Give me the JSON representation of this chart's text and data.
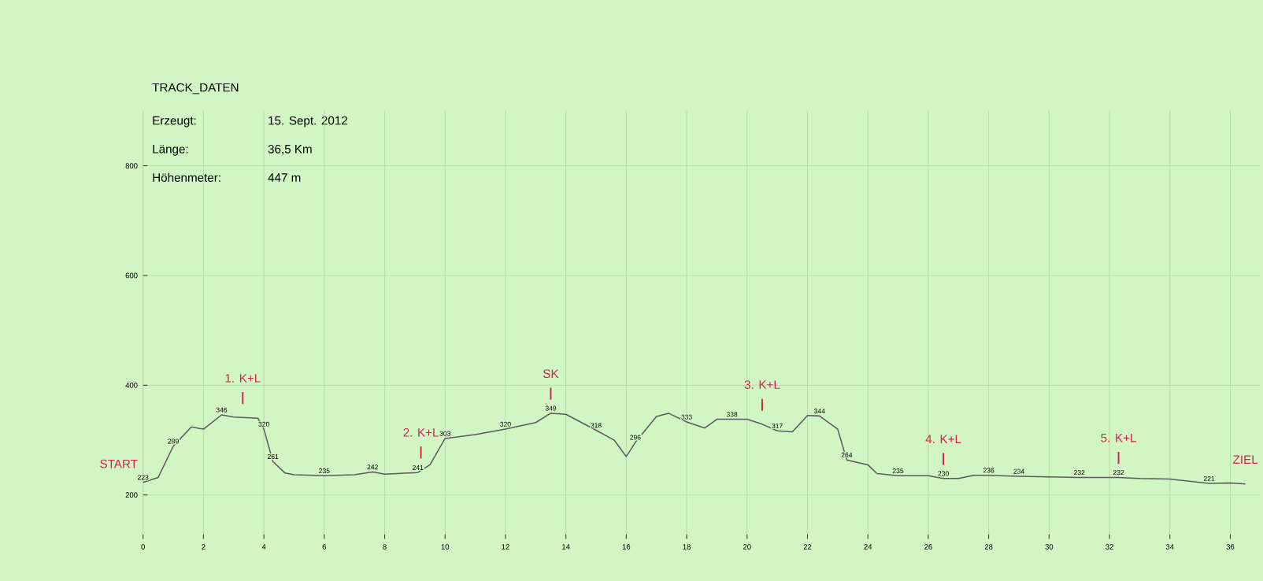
{
  "chart_data": {
    "type": "line",
    "title": "TRACK_DATEN",
    "annotations": [
      "Erzeugt:",
      "15. Sept. 2012",
      "Länge:",
      "36,5 Km",
      "Höhenmeter:",
      "447 m",
      {
        "text": "START",
        "x": 0,
        "y": 223
      },
      {
        "text": "1. K+L",
        "x": 3.3,
        "y": 341
      },
      {
        "text": "2. K+L",
        "x": 9.2,
        "y": 242
      },
      {
        "text": "SK",
        "x": 13.5,
        "y": 349
      },
      {
        "text": "3. K+L",
        "x": 20.5,
        "y": 329
      },
      {
        "text": "4. K+L",
        "x": 26.5,
        "y": 230
      },
      {
        "text": "5. K+L",
        "x": 32.3,
        "y": 232
      },
      {
        "text": "ZIEL",
        "x": 36.5,
        "y": 220
      }
    ],
    "series": [
      {
        "color": "#5a5a5a",
        "x": [
          0,
          0.5,
          1,
          1.6,
          2,
          2.6,
          3,
          3.8,
          4,
          4.3,
          4.7,
          5,
          6,
          7,
          7.6,
          8,
          9.1,
          9.5,
          10,
          11,
          12,
          13,
          13.5,
          14,
          15,
          15.6,
          16,
          16.3,
          17,
          17.4,
          18,
          18.6,
          19,
          19.5,
          20,
          20.5,
          21,
          21.5,
          22,
          22.4,
          23,
          23.3,
          24,
          24.3,
          25,
          26,
          26.5,
          27,
          27.5,
          28,
          29,
          30,
          31,
          32.3,
          33,
          34,
          35.3,
          36,
          36.5
        ],
        "values": [
          223,
          232,
          289,
          324,
          320,
          346,
          342,
          340,
          320,
          261,
          240,
          237,
          235,
          237,
          242,
          238,
          241,
          255,
          303,
          310,
          320,
          332,
          349,
          347,
          318,
          300,
          270,
          296,
          343,
          349,
          333,
          322,
          338,
          338,
          338,
          329,
          317,
          315,
          345,
          344,
          320,
          264,
          255,
          239,
          235,
          235,
          230,
          230,
          236,
          236,
          234,
          233,
          232,
          232,
          230,
          229,
          221,
          222,
          220
        ],
        "value_labels": [
          "223",
          null,
          "289",
          null,
          null,
          "346",
          null,
          null,
          "320",
          "261",
          null,
          null,
          "235",
          null,
          "242",
          null,
          "241",
          null,
          "303",
          null,
          "320",
          null,
          "349",
          null,
          "318",
          null,
          null,
          "296",
          null,
          null,
          "333",
          null,
          null,
          "338",
          null,
          null,
          "317",
          null,
          null,
          "344",
          null,
          "264",
          null,
          null,
          "235",
          null,
          "230",
          null,
          null,
          "236",
          "234",
          null,
          "232",
          "232",
          null,
          null,
          "221",
          null,
          null
        ]
      }
    ],
    "xlim": [
      0,
      37
    ],
    "ylim": [
      120,
      900
    ],
    "xticks": [
      0,
      2,
      4,
      6,
      8,
      10,
      12,
      14,
      16,
      18,
      20,
      22,
      24,
      26,
      28,
      30,
      32,
      34,
      36
    ],
    "yticks": [
      200,
      400,
      600,
      800
    ],
    "grid": true,
    "marker": "none",
    "line_style": "solid"
  }
}
